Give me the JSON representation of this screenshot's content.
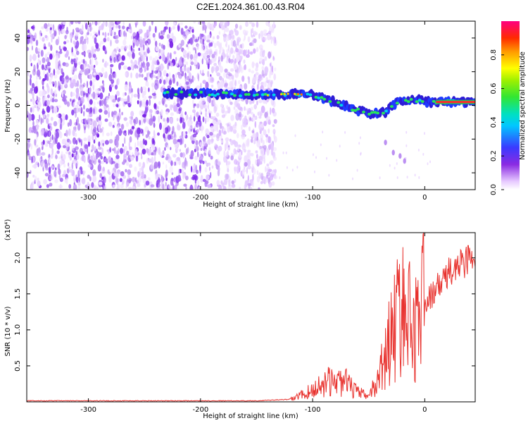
{
  "figure": {
    "title": "C2E1.2024.361.00.43.R04"
  },
  "chart_data": [
    {
      "type": "heatmap",
      "xlabel": "Height of straight line (km)",
      "ylabel": "Frequency (Hz)",
      "xlim": [
        -355,
        45
      ],
      "ylim": [
        -50,
        50
      ],
      "xticks": [
        -300,
        -200,
        -100,
        0
      ],
      "xtick_labels": [
        "-300",
        "-200",
        "-100",
        "0"
      ],
      "yticks": [
        -40,
        -20,
        0,
        20,
        40
      ],
      "ytick_labels": [
        "-40",
        "-20",
        "0",
        "20",
        "40"
      ],
      "colorbar": {
        "label": "Normalized spectral amplitude",
        "range": [
          0,
          1
        ],
        "ticks": [
          0.0,
          0.2,
          0.4,
          0.6,
          0.8
        ],
        "tick_labels": [
          "0.0",
          "0.2",
          "0.4",
          "0.6",
          "0.8"
        ]
      },
      "noise_region": {
        "x_from": -355,
        "x_to": -133,
        "f_range": [
          -50,
          50
        ]
      },
      "signal_trace": {
        "x": [
          -232,
          -200,
          -170,
          -140,
          -120,
          -100,
          -80,
          -60,
          -45,
          -35,
          -25,
          -15,
          -5,
          0,
          10,
          20,
          45
        ],
        "frequency": [
          7,
          7,
          6.5,
          6,
          7,
          6,
          2,
          -3,
          -5,
          -4,
          2,
          3,
          3,
          2,
          2,
          2,
          2
        ]
      },
      "secondary_branch": {
        "x": [
          -35,
          -28,
          -22,
          -18
        ],
        "frequency": [
          -22,
          -28,
          -30,
          -33
        ]
      },
      "grid": false
    },
    {
      "type": "line",
      "xlabel": "Height of straight line (km)",
      "ylabel": "SNR (10 * v/v)",
      "y_multiplier": "(x10⁴)",
      "xlim": [
        -355,
        45
      ],
      "ylim": [
        0,
        2.35
      ],
      "xticks": [
        -300,
        -200,
        -100,
        0
      ],
      "xtick_labels": [
        "-300",
        "-200",
        "-100",
        "0"
      ],
      "yticks": [
        0.5,
        1.0,
        1.5,
        2.0
      ],
      "ytick_labels": [
        "0.5",
        "1.0",
        "1.5",
        "2.0"
      ],
      "series": [
        {
          "color": "#e8322e",
          "x": [
            -355,
            -300,
            -250,
            -200,
            -150,
            -120,
            -100,
            -90,
            -80,
            -70,
            -60,
            -50,
            -45,
            -40,
            -35,
            -30,
            -25,
            -20,
            -15,
            -10,
            -5,
            0,
            10,
            20,
            30,
            40,
            45
          ],
          "y": [
            0.01,
            0.01,
            0.01,
            0.01,
            0.01,
            0.03,
            0.15,
            0.25,
            0.28,
            0.25,
            0.12,
            0.08,
            0.2,
            0.4,
            0.6,
            0.9,
            1.1,
            1.3,
            1.1,
            1.0,
            1.2,
            1.4,
            1.6,
            1.8,
            1.95,
            2.05,
            2.05
          ]
        }
      ],
      "grid": false
    }
  ]
}
